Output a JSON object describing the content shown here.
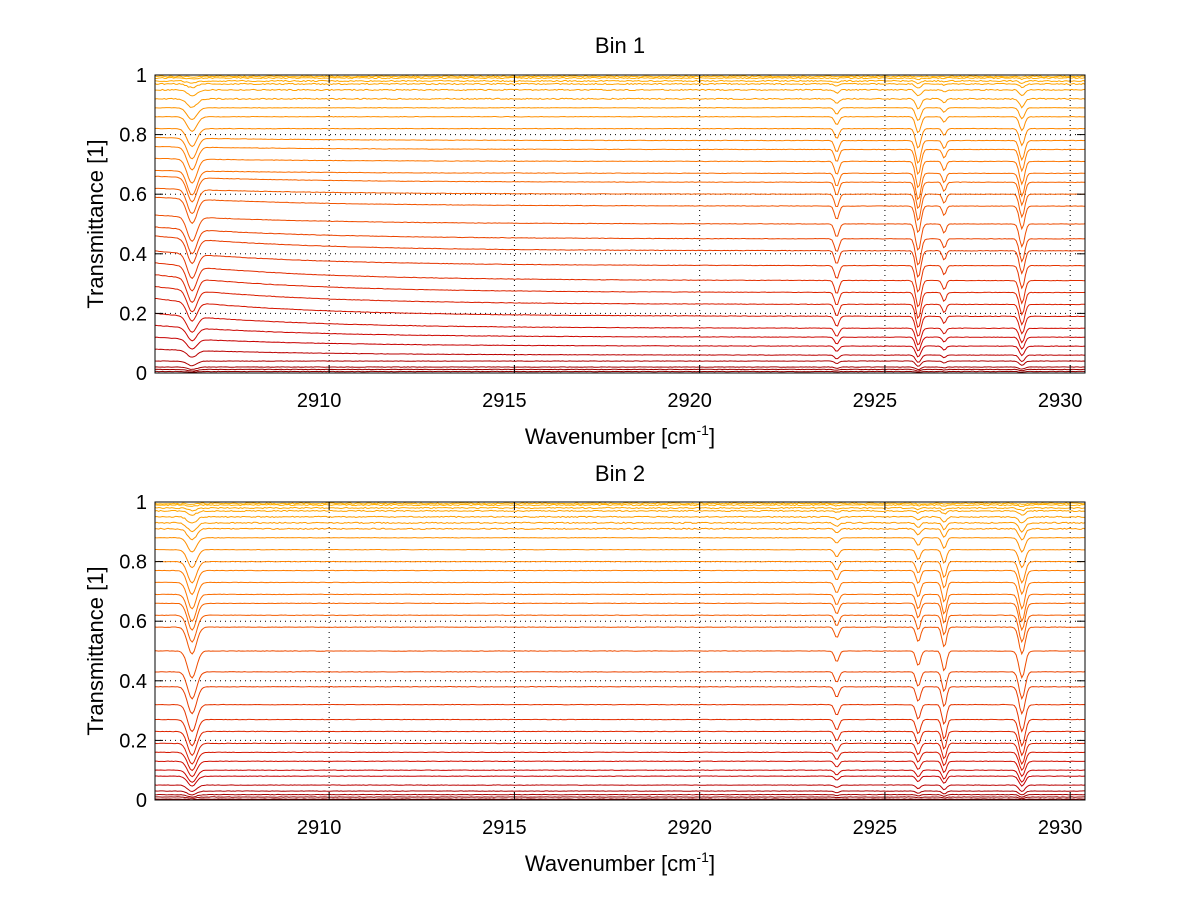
{
  "figure": {
    "background": "#ffffff"
  },
  "chart_data": [
    {
      "type": "line",
      "title": "Bin 1",
      "xlabel": "Wavenumber [cm",
      "xlabel_superscript": "-1",
      "xlabel_suffix": "]",
      "ylabel": "Transmittance [1]",
      "xlim": [
        2905.3,
        2930.4
      ],
      "ylim": [
        0,
        1
      ],
      "xticks": [
        2910,
        2915,
        2920,
        2925,
        2930
      ],
      "xtick_labels": [
        "2910",
        "2915",
        "2920",
        "2925",
        "2930"
      ],
      "yticks": [
        0,
        0.2,
        0.4,
        0.6,
        0.8,
        1
      ],
      "ytick_labels": [
        "0",
        "0.2",
        "0.4",
        "0.6",
        "0.8",
        "1"
      ],
      "grid": true,
      "absorption_lines": [
        {
          "x": 2906.3,
          "depth": 0.9,
          "width": 0.13
        },
        {
          "x": 2923.7,
          "depth": 0.5,
          "width": 0.06
        },
        {
          "x": 2925.9,
          "depth": 1.0,
          "width": 0.07
        },
        {
          "x": 2926.6,
          "depth": 0.35,
          "width": 0.05
        },
        {
          "x": 2928.7,
          "depth": 0.85,
          "width": 0.07
        }
      ],
      "series_baselines": [
        0.005,
        0.012,
        0.02,
        0.04,
        0.06,
        0.09,
        0.12,
        0.15,
        0.19,
        0.23,
        0.27,
        0.31,
        0.36,
        0.41,
        0.45,
        0.5,
        0.56,
        0.6,
        0.64,
        0.67,
        0.71,
        0.75,
        0.78,
        0.82,
        0.86,
        0.89,
        0.92,
        0.95,
        0.97,
        0.98,
        0.99,
        0.995
      ],
      "series_start_rise": [
        0,
        0,
        0,
        0,
        0.02,
        0.03,
        0.04,
        0.05,
        0.06,
        0.06,
        0.06,
        0.06,
        0.05,
        0.05,
        0.04,
        0.03,
        0.03,
        0.02,
        0.02,
        0.01,
        0.01,
        0.01,
        0.01,
        0,
        0,
        0,
        0,
        0,
        0,
        0,
        0,
        0
      ]
    },
    {
      "type": "line",
      "title": "Bin 2",
      "xlabel": "Wavenumber [cm",
      "xlabel_superscript": "-1",
      "xlabel_suffix": "]",
      "ylabel": "Transmittance [1]",
      "xlim": [
        2905.3,
        2930.4
      ],
      "ylim": [
        0,
        1
      ],
      "xticks": [
        2910,
        2915,
        2920,
        2925,
        2930
      ],
      "xtick_labels": [
        "2910",
        "2915",
        "2920",
        "2925",
        "2930"
      ],
      "yticks": [
        0,
        0.2,
        0.4,
        0.6,
        0.8,
        1
      ],
      "ytick_labels": [
        "0",
        "0.2",
        "0.4",
        "0.6",
        "0.8",
        "1"
      ],
      "grid": true,
      "absorption_lines": [
        {
          "x": 2906.3,
          "depth": 1.0,
          "width": 0.12
        },
        {
          "x": 2923.7,
          "depth": 0.4,
          "width": 0.06
        },
        {
          "x": 2925.9,
          "depth": 0.55,
          "width": 0.06
        },
        {
          "x": 2926.6,
          "depth": 0.75,
          "width": 0.06
        },
        {
          "x": 2928.7,
          "depth": 1.0,
          "width": 0.08
        }
      ],
      "series_baselines": [
        0.003,
        0.01,
        0.018,
        0.03,
        0.05,
        0.08,
        0.1,
        0.13,
        0.16,
        0.19,
        0.23,
        0.27,
        0.32,
        0.38,
        0.43,
        0.5,
        0.58,
        0.62,
        0.66,
        0.69,
        0.73,
        0.77,
        0.8,
        0.84,
        0.88,
        0.91,
        0.93,
        0.95,
        0.97,
        0.98,
        0.99,
        0.995
      ],
      "series_start_rise": [
        0,
        0,
        0,
        0,
        0,
        0,
        0,
        0,
        0,
        0,
        0,
        0,
        0,
        0,
        0,
        0,
        0,
        0,
        0,
        0,
        0,
        0,
        0,
        0,
        0,
        0,
        0,
        0,
        0,
        0,
        0,
        0
      ]
    }
  ],
  "colors": {
    "gradient": [
      "#8b0000",
      "#c80000",
      "#e02800",
      "#f05000",
      "#ff7a00",
      "#ff9a00",
      "#ffb000"
    ],
    "top_noise": [
      "#00c8d8",
      "#2aa0a0",
      "#ff8c00"
    ]
  }
}
